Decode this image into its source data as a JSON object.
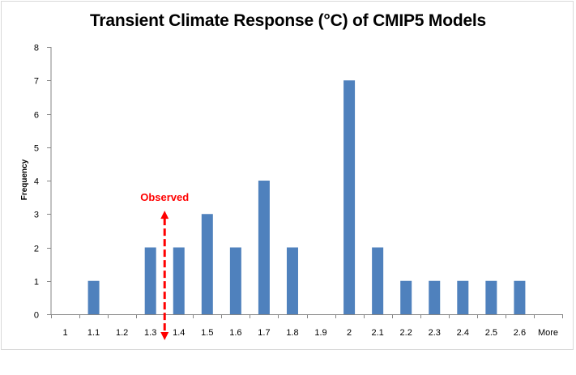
{
  "chart_data": {
    "type": "bar",
    "title": "Transient Climate Response (°C) of CMIP5 Models",
    "xlabel": "",
    "ylabel": "Frequency",
    "categories": [
      "1",
      "1.1",
      "1.2",
      "1.3",
      "1.4",
      "1.5",
      "1.6",
      "1.7",
      "1.8",
      "1.9",
      "2",
      "2.1",
      "2.2",
      "2.3",
      "2.4",
      "2.5",
      "2.6",
      "More"
    ],
    "values": [
      0,
      1,
      0,
      2,
      2,
      3,
      2,
      4,
      2,
      0,
      7,
      2,
      1,
      1,
      1,
      1,
      1,
      0
    ],
    "ylim": [
      0,
      8
    ],
    "yticks": [
      "0",
      "1",
      "2",
      "3",
      "4",
      "5",
      "6",
      "7",
      "8"
    ],
    "grid": false,
    "legend": "none",
    "bar_color": "#4f81bd",
    "annotation": {
      "text": "Observed",
      "x_value": 1.35,
      "y_from": 0,
      "y_to": 3.1,
      "color": "#ff0000"
    }
  }
}
